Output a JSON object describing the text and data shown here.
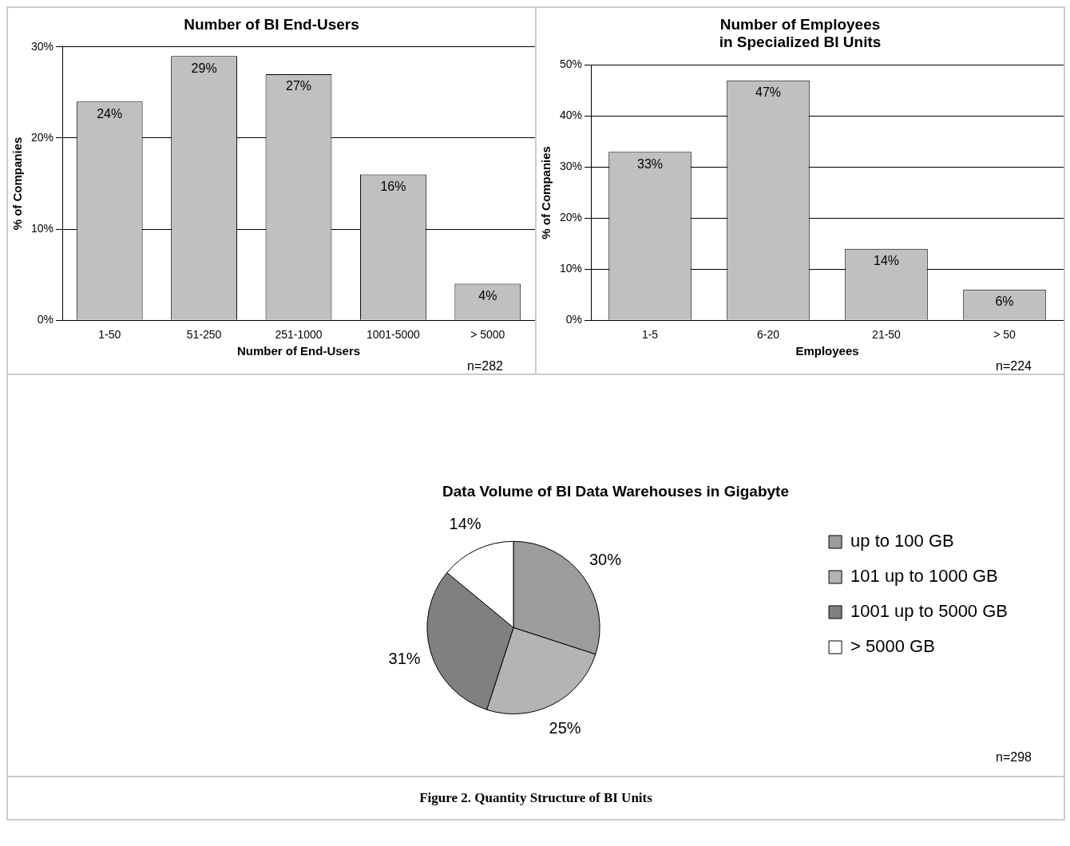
{
  "chart_data": [
    {
      "type": "bar",
      "title": "Number of BI End-Users",
      "xlabel": "Number of End-Users",
      "ylabel": "% of Companies",
      "categories": [
        "1-50",
        "51-250",
        "251-1000",
        "1001-5000",
        "> 5000"
      ],
      "values": [
        24,
        29,
        27,
        16,
        4
      ],
      "value_labels": [
        "24%",
        "29%",
        "27%",
        "16%",
        "4%"
      ],
      "color": "#c0c0c0",
      "ylim": [
        0,
        30
      ],
      "yticks": [
        {
          "value": 0,
          "label": "0%"
        },
        {
          "value": 10,
          "label": "10%"
        },
        {
          "value": 20,
          "label": "20%"
        },
        {
          "value": 30,
          "label": "30%"
        }
      ],
      "grid": "y",
      "annotations": [
        "n=282"
      ]
    },
    {
      "type": "bar",
      "title": "Number of Employees\nin Specialized BI Units",
      "xlabel": "Employees",
      "ylabel": "% of Companies",
      "categories": [
        "1-5",
        "6-20",
        "21-50",
        "> 50"
      ],
      "values": [
        33,
        47,
        14,
        6
      ],
      "value_labels": [
        "33%",
        "47%",
        "14%",
        "6%"
      ],
      "color": "#c0c0c0",
      "ylim": [
        0,
        50
      ],
      "yticks": [
        {
          "value": 0,
          "label": "0%"
        },
        {
          "value": 10,
          "label": "10%"
        },
        {
          "value": 20,
          "label": "20%"
        },
        {
          "value": 30,
          "label": "30%"
        },
        {
          "value": 40,
          "label": "40%"
        },
        {
          "value": 50,
          "label": "50%"
        }
      ],
      "grid": "y",
      "annotations": [
        "n=224"
      ]
    },
    {
      "type": "pie",
      "title": "Data Volume of BI Data Warehouses in Gigabyte",
      "categories": [
        "up to 100 GB",
        "101 up to 1000 GB",
        "1001 up to 5000 GB",
        "> 5000 GB"
      ],
      "values": [
        30,
        25,
        31,
        14
      ],
      "value_labels": [
        "30%",
        "25%",
        "31%",
        "14%"
      ],
      "colors": [
        "#9c9c9c",
        "#b4b4b4",
        "#808080",
        "#ffffff"
      ],
      "legend": "right",
      "annotations": [
        "n=298",
        "Figure 2. Quantity Structure of BI Units"
      ]
    }
  ]
}
